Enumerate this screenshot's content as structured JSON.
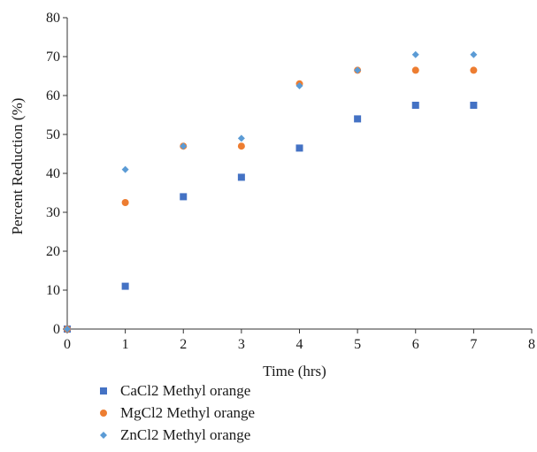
{
  "chart_data": {
    "type": "scatter",
    "title": "",
    "xlabel": "Time (hrs)",
    "ylabel": "Percent Reduction (%)",
    "xlim": [
      0,
      8
    ],
    "ylim": [
      0,
      80
    ],
    "x_ticks": [
      "0",
      "1",
      "2",
      "3",
      "4",
      "5",
      "6",
      "7",
      "8"
    ],
    "y_ticks": [
      "0",
      "10",
      "20",
      "30",
      "40",
      "50",
      "60",
      "70",
      "80"
    ],
    "grid": false,
    "legend_position": "bottom",
    "series": [
      {
        "name": "CaCl2 Methyl orange",
        "color": "#4472c4",
        "marker": "square",
        "x": [
          0,
          1,
          2,
          3,
          4,
          5,
          6,
          7
        ],
        "y": [
          0,
          11,
          34,
          39,
          46.5,
          54,
          57.5,
          57.5
        ]
      },
      {
        "name": "MgCl2 Methyl orange",
        "color": "#ed7d31",
        "marker": "circle",
        "x": [
          0,
          1,
          2,
          3,
          4,
          5,
          6,
          7
        ],
        "y": [
          0,
          32.5,
          47,
          47,
          63,
          66.5,
          66.5,
          66.5
        ]
      },
      {
        "name": "ZnCl2 Methyl orange",
        "color": "#5b9bd5",
        "marker": "diamond",
        "x": [
          0,
          1,
          2,
          3,
          4,
          5,
          6,
          7
        ],
        "y": [
          0,
          41,
          47,
          49,
          62.5,
          66.5,
          70.5,
          70.5
        ]
      }
    ]
  }
}
